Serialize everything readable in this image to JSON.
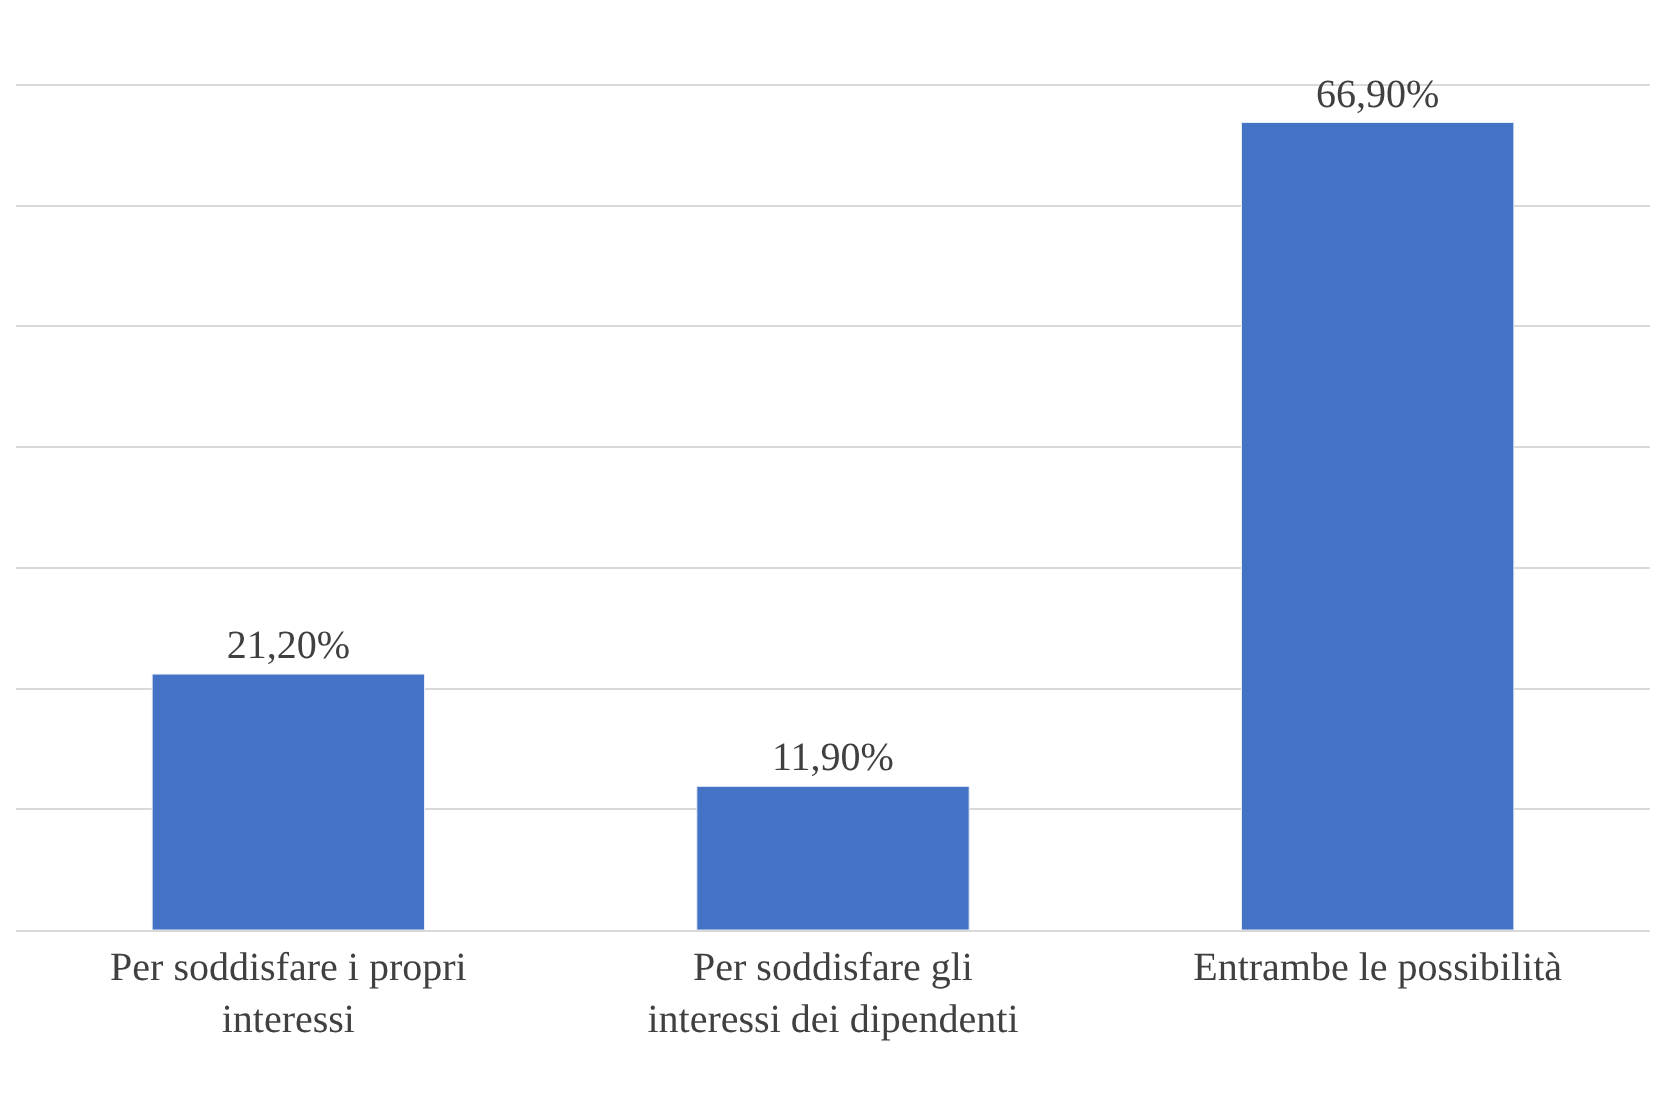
{
  "chart_data": {
    "type": "bar",
    "categories": [
      "Per soddisfare i propri interessi",
      "Per soddisfare gli interessi dei dipendenti",
      "Entrambe le possibilità"
    ],
    "values": [
      21.2,
      11.9,
      66.9
    ],
    "value_labels": [
      "21,20%",
      "11,90%",
      "66,90%"
    ],
    "color": "#4472c4",
    "grid": "y",
    "tick_labels": "x"
  }
}
